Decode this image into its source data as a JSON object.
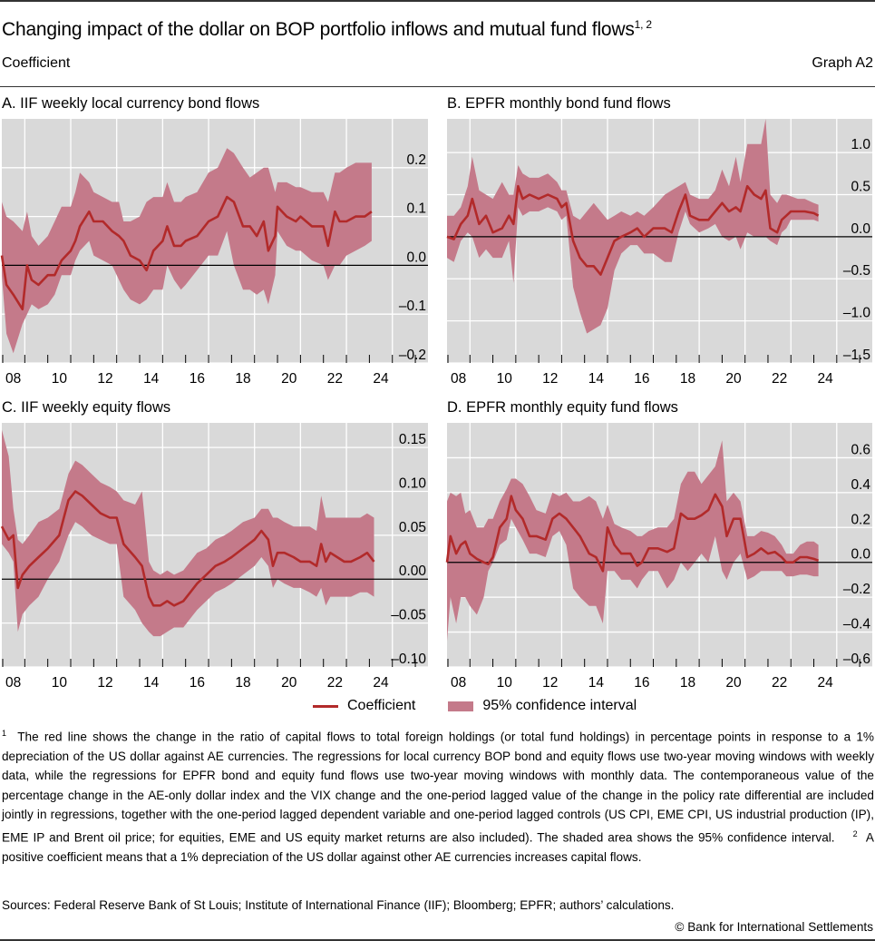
{
  "header": {
    "title": "Changing impact of the dollar on BOP portfolio inflows and mutual fund flows",
    "title_sup": "1, 2",
    "unit": "Coefficient",
    "graph_id": "Graph A2"
  },
  "legend": {
    "line_label": "Coefficient",
    "band_label": "95% confidence interval"
  },
  "colors": {
    "line": "#b22a2a",
    "band": "#c47a8a",
    "background": "#d9d9d9",
    "grid": "#ffffff",
    "zero_line": "#000000"
  },
  "notes": {
    "n1_sup": "1",
    "n1": "The red line shows the change in the ratio of capital flows to total foreign holdings (or total fund holdings) in percentage points in response to a 1% depreciation of the US dollar against AE currencies. The regressions for local currency BOP bond and equity flows use two-year moving windows with weekly data, while the regressions for EPFR bond and equity fund flows use two-year moving windows with monthly data. The contemporaneous value of the percentage change in the AE-only dollar index and the VIX change and the one-period lagged value of the change in the policy rate differential are included jointly in regressions, together with the one-period lagged dependent variable and one-period lagged controls (US CPI, EME CPI, US industrial production (IP), EME IP and Brent oil price; for equities, EME and US equity market returns are also included). The shaded area shows the 95% confidence interval.",
    "n2_sup": "2",
    "n2": "A positive coefficient means that a 1% depreciation of the US dollar against other AE currencies increases capital flows."
  },
  "sources": "Sources: Federal Reserve Bank of St Louis; Institute of International Finance (IIF); Bloomberg; EPFR; authors’ calculations.",
  "copyright": "© Bank for International Settlements",
  "chart_data": [
    {
      "id": "A",
      "type": "line",
      "title": "A. IIF weekly local currency bond flows",
      "xlabel": "",
      "ylabel": "Coefficient",
      "xlim": [
        2008.0,
        2026.55
      ],
      "ylim": [
        -0.2,
        0.3
      ],
      "x_ticks": [
        "08",
        "10",
        "12",
        "14",
        "16",
        "18",
        "20",
        "22",
        "24"
      ],
      "y_ticks": [
        "0.2",
        "0.1",
        "0.0",
        "–0.1",
        "–0.2"
      ],
      "y_tick_values": [
        0.2,
        0.1,
        0.0,
        -0.1,
        -0.2
      ],
      "grid": true,
      "x": [
        2008.0,
        2008.2,
        2008.5,
        2008.9,
        2009.1,
        2009.3,
        2009.6,
        2010.0,
        2010.3,
        2010.6,
        2011.0,
        2011.2,
        2011.4,
        2011.8,
        2012.0,
        2012.4,
        2012.8,
        2013.1,
        2013.3,
        2013.6,
        2014.0,
        2014.3,
        2014.6,
        2015.0,
        2015.2,
        2015.5,
        2015.8,
        2016.0,
        2016.5,
        2017.0,
        2017.4,
        2017.8,
        2018.1,
        2018.5,
        2018.8,
        2019.1,
        2019.4,
        2019.6,
        2019.9,
        2020.0,
        2020.4,
        2020.8,
        2021.0,
        2021.5,
        2022.0,
        2022.2,
        2022.5,
        2022.7,
        2023.0,
        2023.4,
        2023.8,
        2024.1
      ],
      "values": [
        0.02,
        -0.04,
        -0.06,
        -0.09,
        0.0,
        -0.03,
        -0.04,
        -0.02,
        -0.02,
        0.01,
        0.03,
        0.05,
        0.08,
        0.11,
        0.09,
        0.09,
        0.07,
        0.06,
        0.05,
        0.02,
        0.01,
        -0.01,
        0.03,
        0.05,
        0.08,
        0.04,
        0.04,
        0.05,
        0.06,
        0.09,
        0.1,
        0.14,
        0.13,
        0.08,
        0.08,
        0.06,
        0.09,
        0.03,
        0.06,
        0.12,
        0.1,
        0.09,
        0.1,
        0.08,
        0.08,
        0.04,
        0.11,
        0.09,
        0.09,
        0.1,
        0.1,
        0.11
      ],
      "lower": [
        -0.02,
        -0.14,
        -0.18,
        -0.12,
        -0.1,
        -0.08,
        -0.09,
        -0.08,
        -0.06,
        -0.02,
        -0.02,
        0.01,
        0.03,
        0.05,
        0.02,
        0.01,
        0.0,
        -0.03,
        -0.05,
        -0.07,
        -0.08,
        -0.07,
        -0.05,
        -0.05,
        0.0,
        -0.03,
        -0.05,
        -0.04,
        -0.01,
        0.02,
        0.02,
        0.07,
        0.0,
        -0.05,
        -0.05,
        -0.06,
        -0.05,
        -0.08,
        -0.02,
        0.07,
        0.04,
        0.03,
        0.03,
        0.01,
        0.0,
        -0.03,
        0.0,
        0.0,
        0.02,
        0.03,
        0.04,
        0.05
      ],
      "upper": [
        0.13,
        0.1,
        0.09,
        0.07,
        0.11,
        0.06,
        0.04,
        0.06,
        0.09,
        0.12,
        0.12,
        0.15,
        0.19,
        0.17,
        0.15,
        0.14,
        0.13,
        0.13,
        0.09,
        0.09,
        0.1,
        0.13,
        0.14,
        0.14,
        0.17,
        0.13,
        0.13,
        0.14,
        0.15,
        0.19,
        0.2,
        0.24,
        0.23,
        0.2,
        0.18,
        0.19,
        0.2,
        0.2,
        0.15,
        0.17,
        0.17,
        0.16,
        0.16,
        0.15,
        0.15,
        0.13,
        0.19,
        0.19,
        0.2,
        0.21,
        0.21,
        0.21
      ]
    },
    {
      "id": "B",
      "type": "line",
      "title": "B. EPFR monthly bond fund flows",
      "xlabel": "",
      "ylabel": "Coefficient",
      "xlim": [
        2008.0,
        2026.55
      ],
      "ylim": [
        -1.5,
        1.4
      ],
      "x_ticks": [
        "08",
        "10",
        "12",
        "14",
        "16",
        "18",
        "20",
        "22",
        "24"
      ],
      "y_ticks": [
        "1.0",
        "0.5",
        "0.0",
        "–0.5",
        "–1.0",
        "–1.5"
      ],
      "y_tick_values": [
        1.0,
        0.5,
        0.0,
        -0.5,
        -1.0,
        -1.5
      ],
      "grid": true,
      "x": [
        2008.0,
        2008.3,
        2008.6,
        2008.9,
        2009.1,
        2009.4,
        2009.7,
        2010.0,
        2010.4,
        2010.7,
        2010.9,
        2011.1,
        2011.3,
        2011.6,
        2012.0,
        2012.4,
        2012.8,
        2013.0,
        2013.2,
        2013.5,
        2013.8,
        2014.1,
        2014.4,
        2014.7,
        2015.0,
        2015.3,
        2015.6,
        2016.0,
        2016.3,
        2016.6,
        2017.0,
        2017.5,
        2017.8,
        2018.1,
        2018.4,
        2018.6,
        2019.0,
        2019.4,
        2019.7,
        2020.0,
        2020.3,
        2020.6,
        2020.8,
        2021.1,
        2021.4,
        2021.7,
        2021.9,
        2022.1,
        2022.4,
        2022.6,
        2022.8,
        2023.0,
        2023.3,
        2023.6,
        2024.0,
        2024.2
      ],
      "values": [
        0.0,
        -0.03,
        0.15,
        0.25,
        0.45,
        0.15,
        0.25,
        0.05,
        0.1,
        0.25,
        0.15,
        0.6,
        0.45,
        0.5,
        0.45,
        0.5,
        0.45,
        0.35,
        0.4,
        -0.05,
        -0.25,
        -0.35,
        -0.35,
        -0.45,
        -0.25,
        -0.05,
        0.0,
        0.05,
        0.1,
        0.0,
        0.1,
        0.1,
        0.05,
        0.3,
        0.5,
        0.25,
        0.2,
        0.2,
        0.3,
        0.4,
        0.3,
        0.35,
        0.3,
        0.6,
        0.5,
        0.45,
        0.55,
        0.1,
        0.05,
        0.2,
        0.25,
        0.3,
        0.3,
        0.3,
        0.28,
        0.25
      ],
      "lower": [
        -0.25,
        -0.3,
        -0.05,
        0.05,
        0.0,
        -0.25,
        -0.15,
        -0.25,
        -0.25,
        -0.05,
        -0.55,
        0.35,
        0.25,
        0.3,
        0.3,
        0.35,
        0.3,
        0.2,
        0.25,
        -0.6,
        -0.9,
        -1.15,
        -1.1,
        -1.05,
        -0.85,
        -0.4,
        -0.2,
        -0.1,
        -0.1,
        -0.2,
        -0.2,
        -0.3,
        -0.3,
        0.05,
        0.3,
        0.15,
        0.05,
        0.1,
        0.15,
        0.0,
        -0.05,
        0.0,
        -0.15,
        0.05,
        0.0,
        0.0,
        0.0,
        -0.05,
        -0.1,
        0.05,
        0.1,
        0.2,
        0.2,
        0.2,
        0.2,
        0.18
      ],
      "upper": [
        0.25,
        0.25,
        0.35,
        0.6,
        0.95,
        0.55,
        0.5,
        0.45,
        0.65,
        0.5,
        0.5,
        0.85,
        0.75,
        0.7,
        0.7,
        0.75,
        0.65,
        0.55,
        0.55,
        0.25,
        0.2,
        0.3,
        0.4,
        0.3,
        0.2,
        0.25,
        0.3,
        0.25,
        0.3,
        0.25,
        0.35,
        0.5,
        0.55,
        0.6,
        0.65,
        0.5,
        0.45,
        0.45,
        0.55,
        0.8,
        0.6,
        0.95,
        0.65,
        1.1,
        1.1,
        1.1,
        1.4,
        0.5,
        0.4,
        0.5,
        0.5,
        0.48,
        0.45,
        0.45,
        0.4,
        0.38
      ]
    },
    {
      "id": "C",
      "type": "line",
      "title": "C. IIF weekly equity flows",
      "xlabel": "",
      "ylabel": "Coefficient",
      "xlim": [
        2008.0,
        2026.55
      ],
      "ylim": [
        -0.1,
        0.178
      ],
      "x_ticks": [
        "08",
        "10",
        "12",
        "14",
        "16",
        "18",
        "20",
        "22",
        "24"
      ],
      "y_ticks": [
        "0.15",
        "0.10",
        "0.05",
        "0.00",
        "–0.05",
        "–0.10"
      ],
      "y_tick_values": [
        0.15,
        0.1,
        0.05,
        0.0,
        -0.05,
        -0.1
      ],
      "grid": true,
      "x": [
        2008.0,
        2008.3,
        2008.5,
        2008.7,
        2008.9,
        2009.2,
        2009.6,
        2010.0,
        2010.5,
        2010.9,
        2011.2,
        2011.5,
        2011.9,
        2012.3,
        2012.7,
        2013.0,
        2013.3,
        2013.8,
        2014.1,
        2014.4,
        2014.6,
        2014.9,
        2015.2,
        2015.5,
        2015.9,
        2016.2,
        2016.5,
        2016.9,
        2017.3,
        2017.7,
        2018.0,
        2018.5,
        2019.0,
        2019.3,
        2019.6,
        2019.8,
        2020.0,
        2020.3,
        2020.7,
        2021.0,
        2021.4,
        2021.7,
        2021.9,
        2022.1,
        2022.3,
        2022.6,
        2022.9,
        2023.2,
        2023.6,
        2023.9,
        2024.2
      ],
      "values": [
        0.06,
        0.045,
        0.05,
        -0.01,
        0.005,
        0.015,
        0.025,
        0.035,
        0.05,
        0.09,
        0.1,
        0.095,
        0.085,
        0.075,
        0.07,
        0.07,
        0.04,
        0.025,
        0.015,
        -0.02,
        -0.03,
        -0.03,
        -0.025,
        -0.03,
        -0.025,
        -0.015,
        -0.005,
        0.005,
        0.015,
        0.02,
        0.025,
        0.035,
        0.045,
        0.055,
        0.045,
        0.015,
        0.03,
        0.03,
        0.025,
        0.02,
        0.02,
        0.015,
        0.04,
        0.02,
        0.03,
        0.025,
        0.02,
        0.02,
        0.025,
        0.03,
        0.02
      ],
      "lower": [
        0.04,
        0.03,
        0.02,
        -0.06,
        -0.04,
        -0.03,
        -0.02,
        0.0,
        0.02,
        0.05,
        0.065,
        0.06,
        0.05,
        0.045,
        0.04,
        0.04,
        -0.02,
        -0.035,
        -0.05,
        -0.06,
        -0.065,
        -0.065,
        -0.06,
        -0.055,
        -0.055,
        -0.045,
        -0.035,
        -0.025,
        -0.015,
        -0.01,
        -0.005,
        0.005,
        0.015,
        0.025,
        0.015,
        -0.01,
        0.0,
        -0.005,
        -0.01,
        -0.01,
        -0.015,
        -0.02,
        -0.01,
        -0.03,
        -0.02,
        -0.02,
        -0.02,
        -0.02,
        -0.015,
        -0.015,
        -0.02
      ],
      "upper": [
        0.17,
        0.14,
        0.08,
        0.045,
        0.04,
        0.05,
        0.065,
        0.07,
        0.08,
        0.12,
        0.135,
        0.13,
        0.12,
        0.11,
        0.105,
        0.1,
        0.09,
        0.085,
        0.1,
        0.02,
        0.01,
        0.005,
        0.01,
        0.005,
        0.01,
        0.02,
        0.03,
        0.035,
        0.045,
        0.05,
        0.055,
        0.065,
        0.07,
        0.08,
        0.08,
        0.07,
        0.07,
        0.065,
        0.06,
        0.06,
        0.06,
        0.055,
        0.095,
        0.07,
        0.07,
        0.07,
        0.07,
        0.07,
        0.07,
        0.075,
        0.07
      ]
    },
    {
      "id": "D",
      "type": "line",
      "title": "D. EPFR monthly equity fund flows",
      "xlabel": "",
      "ylabel": "Coefficient",
      "xlim": [
        2008.0,
        2026.55
      ],
      "ylim": [
        -0.6,
        0.8
      ],
      "x_ticks": [
        "08",
        "10",
        "12",
        "14",
        "16",
        "18",
        "20",
        "22",
        "24"
      ],
      "y_ticks": [
        "0.6",
        "0.4",
        "0.2",
        "0.0",
        "–0.2",
        "–0.4",
        "–0.6"
      ],
      "y_tick_values": [
        0.6,
        0.4,
        0.2,
        0.0,
        -0.2,
        -0.4,
        -0.6
      ],
      "grid": true,
      "x": [
        2008.0,
        2008.15,
        2008.4,
        2008.6,
        2008.8,
        2009.0,
        2009.3,
        2009.6,
        2009.8,
        2010.0,
        2010.3,
        2010.6,
        2010.8,
        2011.0,
        2011.3,
        2011.6,
        2011.9,
        2012.3,
        2012.6,
        2012.9,
        2013.2,
        2013.5,
        2013.8,
        2014.2,
        2014.5,
        2014.8,
        2015.0,
        2015.3,
        2015.6,
        2016.0,
        2016.3,
        2016.5,
        2016.8,
        2017.2,
        2017.6,
        2017.9,
        2018.2,
        2018.5,
        2018.8,
        2019.1,
        2019.4,
        2019.7,
        2020.0,
        2020.2,
        2020.5,
        2020.8,
        2021.1,
        2021.4,
        2021.7,
        2022.0,
        2022.3,
        2022.6,
        2022.8,
        2023.1,
        2023.4,
        2023.7,
        2024.0,
        2024.2
      ],
      "values": [
        0.0,
        0.15,
        0.05,
        0.1,
        0.12,
        0.05,
        0.02,
        0.0,
        -0.01,
        0.03,
        0.2,
        0.25,
        0.38,
        0.3,
        0.25,
        0.15,
        0.15,
        0.13,
        0.25,
        0.28,
        0.25,
        0.2,
        0.15,
        0.05,
        0.03,
        -0.05,
        0.2,
        0.1,
        0.05,
        0.05,
        -0.02,
        0.0,
        0.08,
        0.08,
        0.06,
        0.08,
        0.28,
        0.25,
        0.25,
        0.27,
        0.3,
        0.39,
        0.32,
        0.15,
        0.25,
        0.25,
        0.03,
        0.05,
        0.08,
        0.05,
        0.06,
        0.03,
        0.0,
        0.0,
        0.03,
        0.03,
        0.02,
        0.01
      ],
      "lower": [
        -0.45,
        -0.2,
        -0.35,
        -0.2,
        -0.2,
        -0.25,
        -0.3,
        -0.2,
        -0.05,
        0.0,
        0.1,
        0.13,
        0.25,
        0.2,
        0.13,
        0.05,
        0.05,
        0.03,
        0.15,
        0.18,
        0.1,
        -0.15,
        -0.2,
        -0.25,
        -0.25,
        -0.35,
        -0.05,
        -0.05,
        -0.1,
        -0.1,
        -0.15,
        -0.1,
        -0.05,
        -0.05,
        -0.15,
        -0.1,
        0.0,
        -0.05,
        0.0,
        0.05,
        0.0,
        0.15,
        -0.05,
        -0.1,
        0.0,
        0.05,
        -0.1,
        -0.08,
        -0.05,
        -0.05,
        -0.05,
        -0.05,
        -0.08,
        -0.08,
        -0.07,
        -0.07,
        -0.08,
        -0.08
      ],
      "upper": [
        0.35,
        0.4,
        0.38,
        0.4,
        0.28,
        0.3,
        0.2,
        0.2,
        0.25,
        0.25,
        0.35,
        0.42,
        0.48,
        0.48,
        0.45,
        0.38,
        0.3,
        0.28,
        0.4,
        0.38,
        0.4,
        0.35,
        0.35,
        0.38,
        0.35,
        0.25,
        0.33,
        0.22,
        0.2,
        0.18,
        0.15,
        0.15,
        0.18,
        0.2,
        0.2,
        0.25,
        0.45,
        0.52,
        0.52,
        0.45,
        0.5,
        0.55,
        0.7,
        0.35,
        0.4,
        0.35,
        0.15,
        0.15,
        0.18,
        0.17,
        0.15,
        0.1,
        0.05,
        0.05,
        0.1,
        0.12,
        0.12,
        0.1
      ]
    }
  ]
}
